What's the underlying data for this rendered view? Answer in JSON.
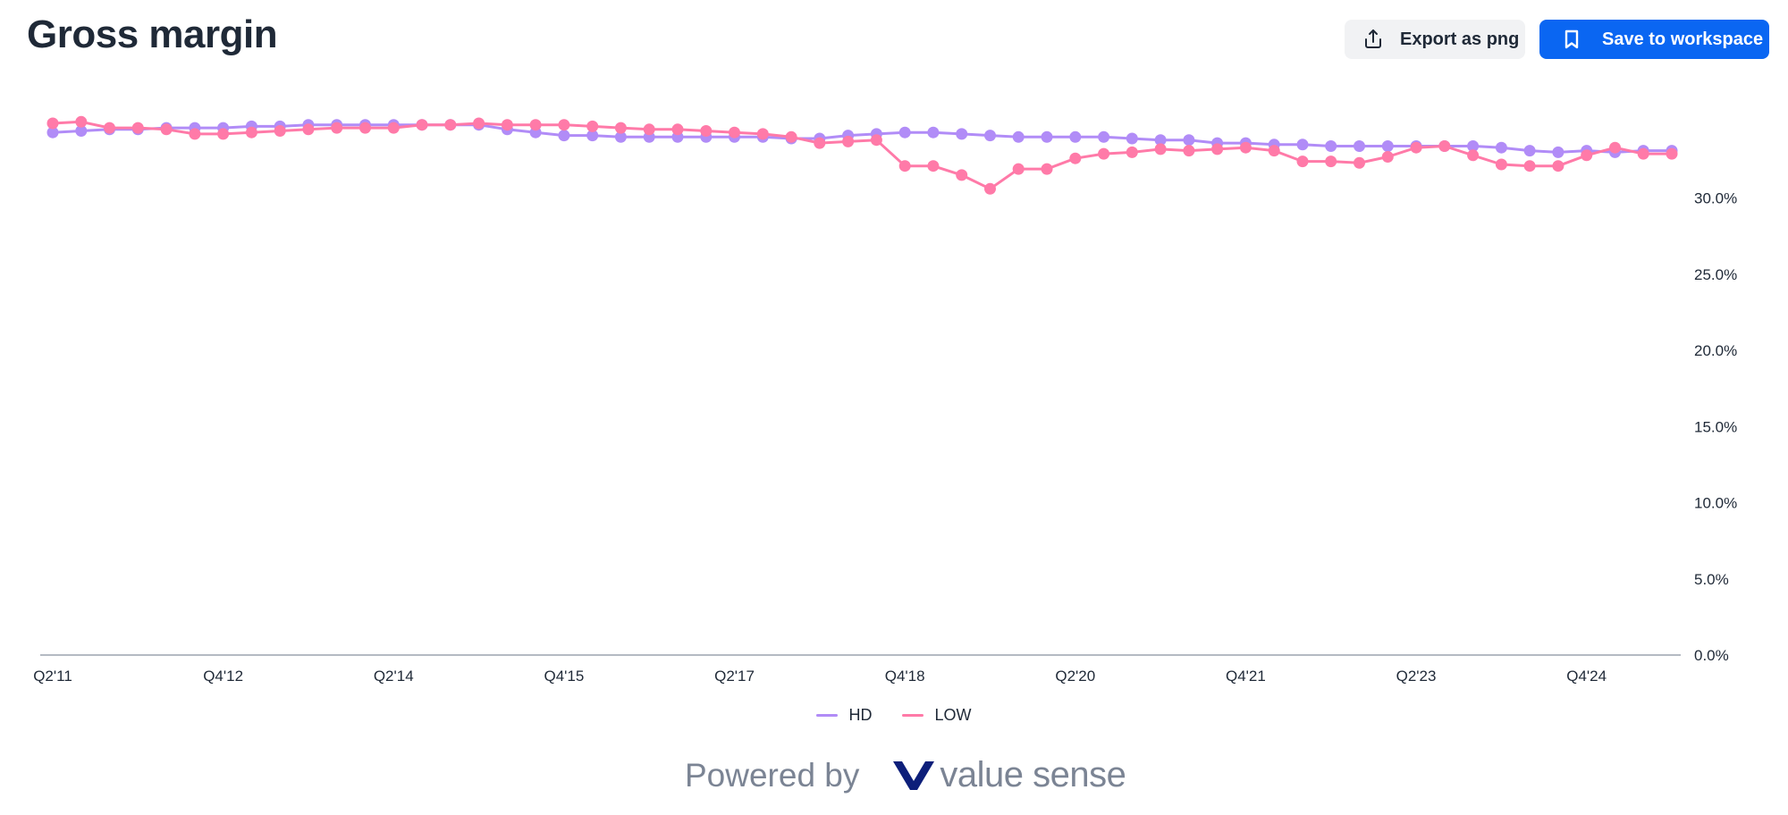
{
  "header": {
    "title": "Gross margin",
    "export_label": "Export as png",
    "save_label": "Save to workspace"
  },
  "footer": {
    "powered_label": "Powered by",
    "brand_name": "value sense"
  },
  "colors": {
    "HD": "#b18cf7",
    "LOW": "#ff7aa8",
    "save_button": "#0a66f2"
  },
  "icons": {
    "export": "share-upload-icon",
    "save": "bookmark-icon",
    "brand": "value-sense-logo-icon"
  },
  "chart_data": {
    "type": "line",
    "title": "Gross margin",
    "xlabel": "",
    "ylabel": "",
    "y_axis_side": "right",
    "ylim": [
      0,
      36
    ],
    "y_ticks": [
      "0.0%",
      "5.0%",
      "10.0%",
      "15.0%",
      "20.0%",
      "25.0%",
      "30.0%"
    ],
    "x_ticks": [
      "Q2'11",
      "Q4'12",
      "Q2'14",
      "Q4'15",
      "Q2'17",
      "Q4'18",
      "Q2'20",
      "Q4'21",
      "Q2'23",
      "Q4'24"
    ],
    "x": [
      "Q2'11",
      "Q3'11",
      "Q4'11",
      "Q1'12",
      "Q2'12",
      "Q3'12",
      "Q4'12",
      "Q1'13",
      "Q2'13",
      "Q3'13",
      "Q4'13",
      "Q1'14",
      "Q2'14",
      "Q3'14",
      "Q4'14",
      "Q1'15",
      "Q2'15",
      "Q3'15",
      "Q4'15",
      "Q1'16",
      "Q2'16",
      "Q3'16",
      "Q4'16",
      "Q1'17",
      "Q2'17",
      "Q3'17",
      "Q4'17",
      "Q1'18",
      "Q2'18",
      "Q3'18",
      "Q4'18",
      "Q1'19",
      "Q2'19",
      "Q3'19",
      "Q4'19",
      "Q1'20",
      "Q2'20",
      "Q3'20",
      "Q4'20",
      "Q1'21",
      "Q2'21",
      "Q3'21",
      "Q4'21",
      "Q1'22",
      "Q2'22",
      "Q3'22",
      "Q4'22",
      "Q1'23",
      "Q2'23",
      "Q3'23",
      "Q4'23",
      "Q1'24",
      "Q2'24",
      "Q3'24",
      "Q4'24",
      "Q1'25",
      "Q2'25",
      "Q3'25"
    ],
    "grid": false,
    "legend": "bottom-center",
    "series": [
      {
        "name": "HD",
        "color": "#b18cf7",
        "values": [
          34.3,
          34.4,
          34.5,
          34.5,
          34.6,
          34.6,
          34.6,
          34.7,
          34.7,
          34.8,
          34.8,
          34.8,
          34.8,
          34.8,
          34.8,
          34.8,
          34.5,
          34.3,
          34.1,
          34.1,
          34.0,
          34.0,
          34.0,
          34.0,
          34.0,
          34.0,
          33.9,
          33.9,
          34.1,
          34.2,
          34.3,
          34.3,
          34.2,
          34.1,
          34.0,
          34.0,
          34.0,
          34.0,
          33.9,
          33.8,
          33.8,
          33.6,
          33.6,
          33.5,
          33.5,
          33.4,
          33.4,
          33.4,
          33.4,
          33.4,
          33.4,
          33.3,
          33.1,
          33.0,
          33.1,
          33.0,
          33.1,
          33.1
        ]
      },
      {
        "name": "LOW",
        "color": "#ff7aa8",
        "values": [
          34.9,
          35.0,
          34.6,
          34.6,
          34.5,
          34.2,
          34.2,
          34.3,
          34.4,
          34.5,
          34.6,
          34.6,
          34.6,
          34.8,
          34.8,
          34.9,
          34.8,
          34.8,
          34.8,
          34.7,
          34.6,
          34.5,
          34.5,
          34.4,
          34.3,
          34.2,
          34.0,
          33.6,
          33.7,
          33.8,
          32.1,
          32.1,
          31.5,
          30.6,
          31.9,
          31.9,
          32.6,
          32.9,
          33.0,
          33.2,
          33.1,
          33.2,
          33.3,
          33.1,
          32.4,
          32.4,
          32.3,
          32.7,
          33.3,
          33.4,
          32.8,
          32.2,
          32.1,
          32.1,
          32.8,
          33.3,
          32.9,
          32.9
        ]
      }
    ]
  }
}
